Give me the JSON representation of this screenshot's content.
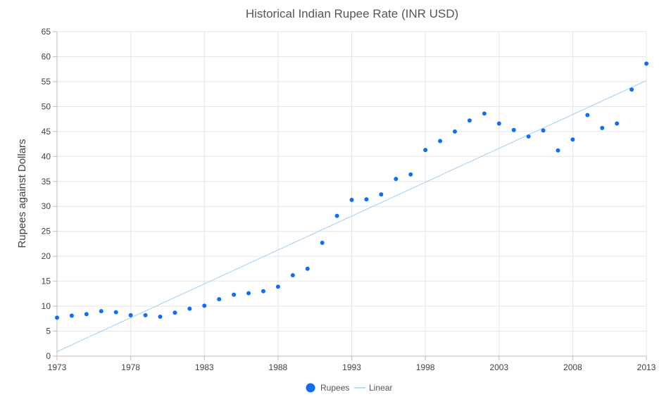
{
  "chart_data": {
    "type": "scatter",
    "title": "Historical Indian Rupee Rate (INR USD)",
    "xlabel": "",
    "ylabel": "Rupees against Dollars",
    "xlim": [
      1973,
      2013
    ],
    "ylim": [
      0,
      65
    ],
    "x_ticks": [
      1973,
      1978,
      1983,
      1988,
      1993,
      1998,
      2003,
      2008,
      2013
    ],
    "y_ticks": [
      0,
      5,
      10,
      15,
      20,
      25,
      30,
      35,
      40,
      45,
      50,
      55,
      60,
      65
    ],
    "grid": true,
    "legend_position": "bottom",
    "series": [
      {
        "name": "Rupees",
        "type": "scatter",
        "color": "#0d6efd",
        "points": [
          [
            1973,
            7.7
          ],
          [
            1974,
            8.1
          ],
          [
            1975,
            8.4
          ],
          [
            1976,
            9.0
          ],
          [
            1977,
            8.8
          ],
          [
            1978,
            8.2
          ],
          [
            1979,
            8.2
          ],
          [
            1980,
            7.9
          ],
          [
            1981,
            8.7
          ],
          [
            1982,
            9.5
          ],
          [
            1983,
            10.1
          ],
          [
            1984,
            11.4
          ],
          [
            1985,
            12.3
          ],
          [
            1986,
            12.6
          ],
          [
            1987,
            13.0
          ],
          [
            1988,
            13.9
          ],
          [
            1989,
            16.2
          ],
          [
            1990,
            17.5
          ],
          [
            1991,
            22.7
          ],
          [
            1992,
            28.1
          ],
          [
            1993,
            31.3
          ],
          [
            1994,
            31.4
          ],
          [
            1995,
            32.4
          ],
          [
            1996,
            35.5
          ],
          [
            1997,
            36.4
          ],
          [
            1998,
            41.3
          ],
          [
            1999,
            43.1
          ],
          [
            2000,
            45.0
          ],
          [
            2001,
            47.2
          ],
          [
            2002,
            48.6
          ],
          [
            2003,
            46.6
          ],
          [
            2004,
            45.3
          ],
          [
            2005,
            44.0
          ],
          [
            2006,
            45.2
          ],
          [
            2007,
            41.2
          ],
          [
            2008,
            43.4
          ],
          [
            2009,
            48.3
          ],
          [
            2010,
            45.7
          ],
          [
            2011,
            46.6
          ],
          [
            2012,
            53.4
          ],
          [
            2013,
            58.6
          ]
        ]
      },
      {
        "name": "Linear",
        "type": "trendline",
        "color": "#9fd0f5",
        "points": [
          [
            1973,
            0.9
          ],
          [
            2013,
            55.2
          ]
        ]
      }
    ]
  }
}
